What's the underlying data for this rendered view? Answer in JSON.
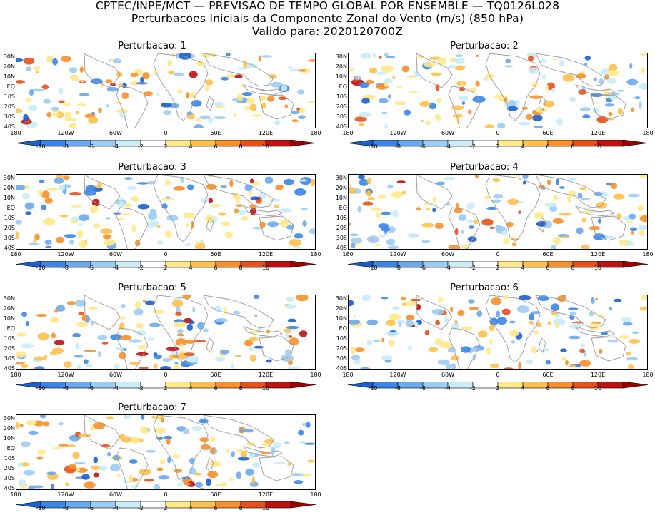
{
  "header": {
    "line1": "CPTEC/INPE/MCT — PREVISAO DE TEMPO GLOBAL POR ENSEMBLE — TQ0126L028",
    "line2": "Perturbacoes Iniciais da Componente Zonal do Vento (m/s) (850 hPa)",
    "line3": "Valido para: 2020120700Z"
  },
  "panels": [
    {
      "title": "Perturbacao: 1"
    },
    {
      "title": "Perturbacao: 2"
    },
    {
      "title": "Perturbacao: 3"
    },
    {
      "title": "Perturbacao: 4"
    },
    {
      "title": "Perturbacao: 5"
    },
    {
      "title": "Perturbacao: 6"
    },
    {
      "title": "Perturbacao: 7"
    }
  ],
  "axes": {
    "lat_labels": [
      "30N",
      "20N",
      "10N",
      "EQ",
      "10S",
      "20S",
      "30S",
      "40S"
    ],
    "lon_labels": [
      "180",
      "120W",
      "60W",
      "0",
      "60E",
      "120E",
      "180"
    ]
  },
  "colorbar": {
    "ticks": [
      "-10",
      "-8",
      "-6",
      "-4",
      "-2",
      "2",
      "4",
      "6",
      "8",
      "10"
    ],
    "colors": [
      "#1a5fd0",
      "#3a85e6",
      "#6aa9ee",
      "#9dccf3",
      "#c9ecf6",
      "#ffffff",
      "#ffe88a",
      "#ffc04d",
      "#f98f2a",
      "#e8501a",
      "#c01010",
      "#a00000"
    ]
  }
}
